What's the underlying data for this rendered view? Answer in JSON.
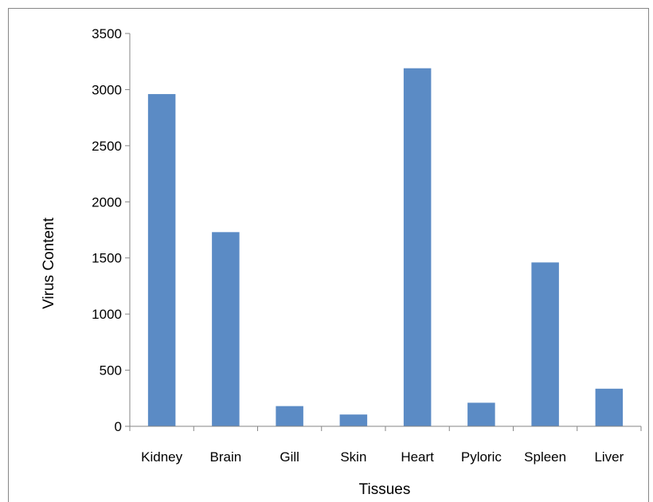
{
  "chart_data": {
    "type": "bar",
    "title": "",
    "xlabel": "Tissues",
    "ylabel": "Virus Content",
    "categories": [
      "Kidney",
      "Brain",
      "Gill",
      "Skin",
      "Heart",
      "Pyloric",
      "Spleen",
      "Liver"
    ],
    "series": [
      {
        "values": [
          2960,
          1730,
          180,
          105,
          3190,
          210,
          1460,
          335
        ]
      }
    ],
    "ylim": [
      0,
      3500
    ],
    "yticks": [
      "0",
      "500",
      "1000",
      "1500",
      "2000",
      "2500",
      "3000",
      "3500"
    ],
    "grid": false,
    "legend": "none",
    "bar_color": "#5b8bc5",
    "axis_color": "#868686"
  }
}
